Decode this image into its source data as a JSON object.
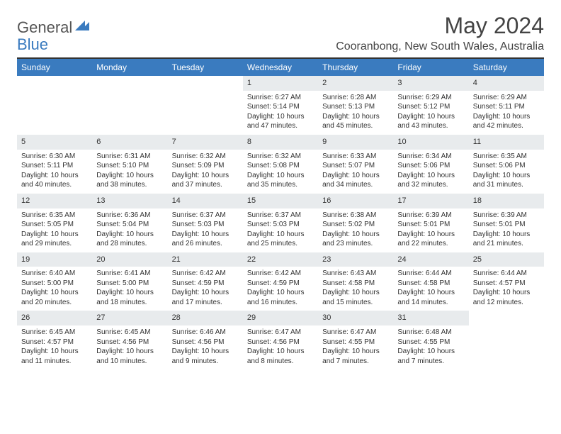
{
  "brand": {
    "general": "General",
    "blue": "Blue"
  },
  "title": "May 2024",
  "location": "Cooranbong, New South Wales, Australia",
  "colors": {
    "header_bg": "#3a7bbf",
    "daynum_bg": "#e8ebed",
    "border_top": "#333333",
    "text": "#333333",
    "title": "#444444"
  },
  "weekdays": [
    "Sunday",
    "Monday",
    "Tuesday",
    "Wednesday",
    "Thursday",
    "Friday",
    "Saturday"
  ],
  "weeks": [
    [
      {
        "n": "",
        "sr": "",
        "ss": "",
        "dl": ""
      },
      {
        "n": "",
        "sr": "",
        "ss": "",
        "dl": ""
      },
      {
        "n": "",
        "sr": "",
        "ss": "",
        "dl": ""
      },
      {
        "n": "1",
        "sr": "Sunrise: 6:27 AM",
        "ss": "Sunset: 5:14 PM",
        "dl": "Daylight: 10 hours and 47 minutes."
      },
      {
        "n": "2",
        "sr": "Sunrise: 6:28 AM",
        "ss": "Sunset: 5:13 PM",
        "dl": "Daylight: 10 hours and 45 minutes."
      },
      {
        "n": "3",
        "sr": "Sunrise: 6:29 AM",
        "ss": "Sunset: 5:12 PM",
        "dl": "Daylight: 10 hours and 43 minutes."
      },
      {
        "n": "4",
        "sr": "Sunrise: 6:29 AM",
        "ss": "Sunset: 5:11 PM",
        "dl": "Daylight: 10 hours and 42 minutes."
      }
    ],
    [
      {
        "n": "5",
        "sr": "Sunrise: 6:30 AM",
        "ss": "Sunset: 5:11 PM",
        "dl": "Daylight: 10 hours and 40 minutes."
      },
      {
        "n": "6",
        "sr": "Sunrise: 6:31 AM",
        "ss": "Sunset: 5:10 PM",
        "dl": "Daylight: 10 hours and 38 minutes."
      },
      {
        "n": "7",
        "sr": "Sunrise: 6:32 AM",
        "ss": "Sunset: 5:09 PM",
        "dl": "Daylight: 10 hours and 37 minutes."
      },
      {
        "n": "8",
        "sr": "Sunrise: 6:32 AM",
        "ss": "Sunset: 5:08 PM",
        "dl": "Daylight: 10 hours and 35 minutes."
      },
      {
        "n": "9",
        "sr": "Sunrise: 6:33 AM",
        "ss": "Sunset: 5:07 PM",
        "dl": "Daylight: 10 hours and 34 minutes."
      },
      {
        "n": "10",
        "sr": "Sunrise: 6:34 AM",
        "ss": "Sunset: 5:06 PM",
        "dl": "Daylight: 10 hours and 32 minutes."
      },
      {
        "n": "11",
        "sr": "Sunrise: 6:35 AM",
        "ss": "Sunset: 5:06 PM",
        "dl": "Daylight: 10 hours and 31 minutes."
      }
    ],
    [
      {
        "n": "12",
        "sr": "Sunrise: 6:35 AM",
        "ss": "Sunset: 5:05 PM",
        "dl": "Daylight: 10 hours and 29 minutes."
      },
      {
        "n": "13",
        "sr": "Sunrise: 6:36 AM",
        "ss": "Sunset: 5:04 PM",
        "dl": "Daylight: 10 hours and 28 minutes."
      },
      {
        "n": "14",
        "sr": "Sunrise: 6:37 AM",
        "ss": "Sunset: 5:03 PM",
        "dl": "Daylight: 10 hours and 26 minutes."
      },
      {
        "n": "15",
        "sr": "Sunrise: 6:37 AM",
        "ss": "Sunset: 5:03 PM",
        "dl": "Daylight: 10 hours and 25 minutes."
      },
      {
        "n": "16",
        "sr": "Sunrise: 6:38 AM",
        "ss": "Sunset: 5:02 PM",
        "dl": "Daylight: 10 hours and 23 minutes."
      },
      {
        "n": "17",
        "sr": "Sunrise: 6:39 AM",
        "ss": "Sunset: 5:01 PM",
        "dl": "Daylight: 10 hours and 22 minutes."
      },
      {
        "n": "18",
        "sr": "Sunrise: 6:39 AM",
        "ss": "Sunset: 5:01 PM",
        "dl": "Daylight: 10 hours and 21 minutes."
      }
    ],
    [
      {
        "n": "19",
        "sr": "Sunrise: 6:40 AM",
        "ss": "Sunset: 5:00 PM",
        "dl": "Daylight: 10 hours and 20 minutes."
      },
      {
        "n": "20",
        "sr": "Sunrise: 6:41 AM",
        "ss": "Sunset: 5:00 PM",
        "dl": "Daylight: 10 hours and 18 minutes."
      },
      {
        "n": "21",
        "sr": "Sunrise: 6:42 AM",
        "ss": "Sunset: 4:59 PM",
        "dl": "Daylight: 10 hours and 17 minutes."
      },
      {
        "n": "22",
        "sr": "Sunrise: 6:42 AM",
        "ss": "Sunset: 4:59 PM",
        "dl": "Daylight: 10 hours and 16 minutes."
      },
      {
        "n": "23",
        "sr": "Sunrise: 6:43 AM",
        "ss": "Sunset: 4:58 PM",
        "dl": "Daylight: 10 hours and 15 minutes."
      },
      {
        "n": "24",
        "sr": "Sunrise: 6:44 AM",
        "ss": "Sunset: 4:58 PM",
        "dl": "Daylight: 10 hours and 14 minutes."
      },
      {
        "n": "25",
        "sr": "Sunrise: 6:44 AM",
        "ss": "Sunset: 4:57 PM",
        "dl": "Daylight: 10 hours and 12 minutes."
      }
    ],
    [
      {
        "n": "26",
        "sr": "Sunrise: 6:45 AM",
        "ss": "Sunset: 4:57 PM",
        "dl": "Daylight: 10 hours and 11 minutes."
      },
      {
        "n": "27",
        "sr": "Sunrise: 6:45 AM",
        "ss": "Sunset: 4:56 PM",
        "dl": "Daylight: 10 hours and 10 minutes."
      },
      {
        "n": "28",
        "sr": "Sunrise: 6:46 AM",
        "ss": "Sunset: 4:56 PM",
        "dl": "Daylight: 10 hours and 9 minutes."
      },
      {
        "n": "29",
        "sr": "Sunrise: 6:47 AM",
        "ss": "Sunset: 4:56 PM",
        "dl": "Daylight: 10 hours and 8 minutes."
      },
      {
        "n": "30",
        "sr": "Sunrise: 6:47 AM",
        "ss": "Sunset: 4:55 PM",
        "dl": "Daylight: 10 hours and 7 minutes."
      },
      {
        "n": "31",
        "sr": "Sunrise: 6:48 AM",
        "ss": "Sunset: 4:55 PM",
        "dl": "Daylight: 10 hours and 7 minutes."
      },
      {
        "n": "",
        "sr": "",
        "ss": "",
        "dl": ""
      }
    ]
  ]
}
